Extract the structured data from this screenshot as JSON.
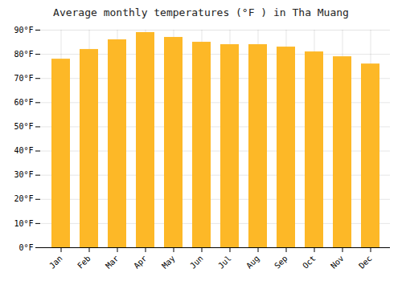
{
  "chart_data": {
    "type": "bar",
    "title": "Average monthly temperatures (°F ) in Tha Muang",
    "categories": [
      "Jan",
      "Feb",
      "Mar",
      "Apr",
      "May",
      "Jun",
      "Jul",
      "Aug",
      "Sep",
      "Oct",
      "Nov",
      "Dec"
    ],
    "values": [
      78,
      82,
      86,
      89,
      87,
      85,
      84,
      84,
      83,
      81,
      79,
      76
    ],
    "color": "#FDB827",
    "ylim": [
      0,
      90
    ],
    "yticks": [
      {
        "value": 0,
        "label": "0°F"
      },
      {
        "value": 10,
        "label": "10°F"
      },
      {
        "value": 20,
        "label": "20°F"
      },
      {
        "value": 30,
        "label": "30°F"
      },
      {
        "value": 40,
        "label": "40°F"
      },
      {
        "value": 50,
        "label": "50°F"
      },
      {
        "value": 60,
        "label": "60°F"
      },
      {
        "value": 70,
        "label": "70°F"
      },
      {
        "value": 80,
        "label": "80°F"
      },
      {
        "value": 90,
        "label": "90°F"
      }
    ],
    "grid": true
  }
}
